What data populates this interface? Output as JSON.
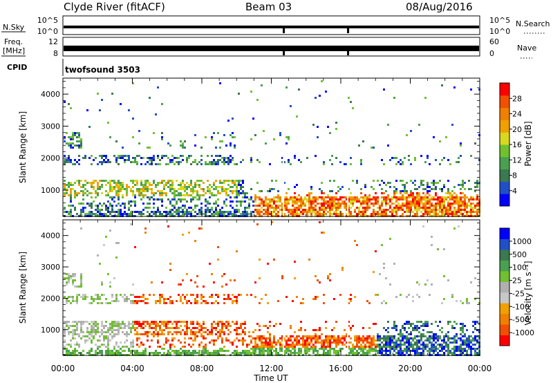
{
  "header": {
    "station": "Clyde River (fitACF)",
    "beam": "Beam 03",
    "date": "08/Aug/2016"
  },
  "nsky_panel": {
    "left_label": "N.Sky",
    "right_label": "N.Search",
    "left_ticks": [
      "10^5",
      "10^0"
    ],
    "right_ticks": [
      "10^5",
      "10^0"
    ]
  },
  "freq_panel": {
    "left_label_1": "Freq.",
    "left_label_2": "[MHz]",
    "right_label": "Nave",
    "left_ticks": [
      "12",
      "8"
    ],
    "right_ticks": [
      "60",
      "0"
    ]
  },
  "cpid_panel": {
    "label": "CPID",
    "text": "twofsound 3503"
  },
  "chart_data": [
    {
      "type": "heatmap",
      "name": "power",
      "ylabel": "Slant Range [km]",
      "ylim": [
        180,
        4500
      ],
      "y_ticks": [
        "1000",
        "2000",
        "3000",
        "4000"
      ],
      "colorbar_label": "Power [dB]",
      "colorbar_colors": [
        "#0000ff",
        "#2050c8",
        "#3c7850",
        "#4aa050",
        "#70c030",
        "#d8d820",
        "#f0a000",
        "#f08000",
        "#f05000",
        "#ff0000"
      ],
      "colorbar_ticks": [
        "4",
        "8",
        "12",
        "16",
        "20",
        "24",
        "28"
      ]
    },
    {
      "type": "heatmap",
      "name": "velocity",
      "ylabel": "Slant Range [km]",
      "ylim": [
        180,
        4500
      ],
      "y_ticks": [
        "1000",
        "2000",
        "3000",
        "4000"
      ],
      "colorbar_label": "Velocity [m s⁻¹]",
      "colorbar_colors": [
        "#ff0000",
        "#f05000",
        "#f08000",
        "#f0a000",
        "#c8c8c8",
        "#b0b0b0",
        "#70c030",
        "#4aa050",
        "#3c7850",
        "#2050c8",
        "#0000ff"
      ],
      "colorbar_ticks": [
        "-1000",
        "-500",
        "-100",
        "-25",
        "25",
        "100",
        "500",
        "1000"
      ]
    }
  ],
  "time_axis": {
    "label": "Time UT",
    "ticks": [
      "00:00",
      "04:00",
      "08:00",
      "12:00",
      "16:00",
      "20:00",
      "00:00"
    ]
  },
  "colors": {
    "frame": "#000000",
    "background": "#ffffff"
  }
}
